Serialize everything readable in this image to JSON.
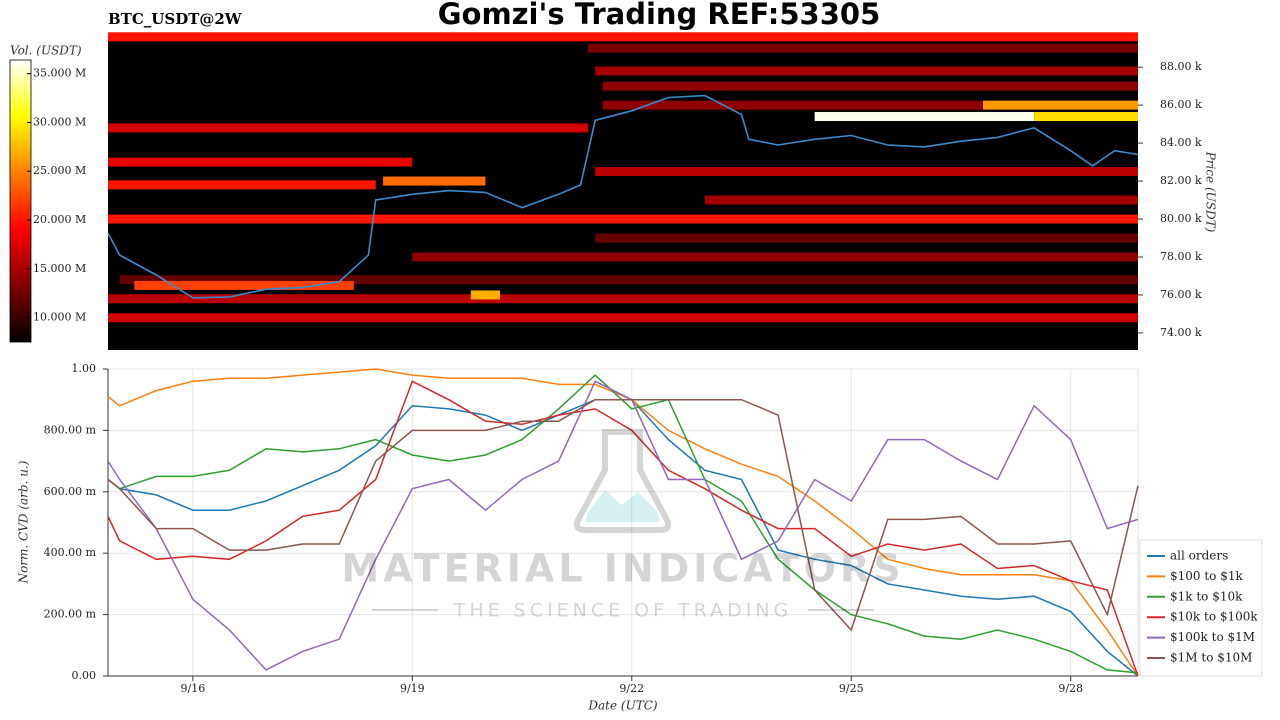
{
  "title": "Gomzi's Trading REF:53305",
  "watermark": {
    "title": "MATERIAL INDICATORS",
    "subtitle": "THE SCIENCE OF TRADING"
  },
  "chart_data": [
    {
      "type": "heatmap",
      "title": "BTC_USDT@2W",
      "ylabel": "Price (USDT)",
      "colorbar_label": "Vol. (USDT)",
      "xlim": [
        14.84,
        28.92
      ],
      "ylim": [
        73100,
        89800
      ],
      "yticks": [
        {
          "value": 74000,
          "label": "74.00 k"
        },
        {
          "value": 76000,
          "label": "76.00 k"
        },
        {
          "value": 78000,
          "label": "78.00 k"
        },
        {
          "value": 80000,
          "label": "80.00 k"
        },
        {
          "value": 82000,
          "label": "82.00 k"
        },
        {
          "value": 84000,
          "label": "84.00 k"
        },
        {
          "value": 86000,
          "label": "86.00 k"
        },
        {
          "value": 88000,
          "label": "88.00 k"
        }
      ],
      "zlim": [
        7500000,
        36400000
      ],
      "zticks": [
        {
          "value": 10000000,
          "label": "10.000 M"
        },
        {
          "value": 15000000,
          "label": "15.000 M"
        },
        {
          "value": 20000000,
          "label": "20.000 M"
        },
        {
          "value": 25000000,
          "label": "25.000 M"
        },
        {
          "value": 30000000,
          "label": "30.000 M"
        },
        {
          "value": 35000000,
          "label": "35.000 M"
        }
      ],
      "cells": [
        {
          "price": 80000,
          "start": 14.84,
          "end": 28.92,
          "volume": 20000000
        },
        {
          "price": 84800,
          "start": 14.84,
          "end": 21.4,
          "volume": 17000000
        },
        {
          "price": 83000,
          "start": 14.84,
          "end": 19.0,
          "volume": 18000000
        },
        {
          "price": 81800,
          "start": 14.84,
          "end": 18.5,
          "volume": 20000000
        },
        {
          "price": 75800,
          "start": 14.84,
          "end": 28.92,
          "volume": 16000000
        },
        {
          "price": 74800,
          "start": 14.84,
          "end": 28.92,
          "volume": 17000000
        },
        {
          "price": 76800,
          "start": 15.0,
          "end": 28.92,
          "volume": 12000000
        },
        {
          "price": 76500,
          "start": 15.2,
          "end": 18.2,
          "volume": 22000000
        },
        {
          "price": 78000,
          "start": 19.0,
          "end": 28.92,
          "volume": 14000000
        },
        {
          "price": 79000,
          "start": 21.5,
          "end": 28.92,
          "volume": 12000000
        },
        {
          "price": 82500,
          "start": 21.5,
          "end": 28.92,
          "volume": 16000000
        },
        {
          "price": 81000,
          "start": 23.0,
          "end": 28.92,
          "volume": 15000000
        },
        {
          "price": 85400,
          "start": 24.5,
          "end": 27.5,
          "volume": 36000000
        },
        {
          "price": 85400,
          "start": 27.5,
          "end": 28.92,
          "volume": 29000000
        },
        {
          "price": 86000,
          "start": 26.8,
          "end": 28.92,
          "volume": 26000000
        },
        {
          "price": 86000,
          "start": 21.6,
          "end": 26.8,
          "volume": 14000000
        },
        {
          "price": 87000,
          "start": 21.6,
          "end": 28.92,
          "volume": 14000000
        },
        {
          "price": 87800,
          "start": 21.5,
          "end": 28.92,
          "volume": 15000000
        },
        {
          "price": 89000,
          "start": 21.4,
          "end": 28.92,
          "volume": 13000000
        },
        {
          "price": 89600,
          "start": 14.84,
          "end": 28.92,
          "volume": 20000000
        },
        {
          "price": 82000,
          "start": 18.6,
          "end": 20.0,
          "volume": 24000000
        },
        {
          "price": 76000,
          "start": 19.8,
          "end": 20.2,
          "volume": 27000000
        }
      ],
      "price_line": {
        "color": "#3a8ccf",
        "x": [
          14.84,
          15,
          15.5,
          16,
          16.5,
          17,
          17.5,
          18,
          18.4,
          18.5,
          19,
          19.5,
          20,
          20.5,
          21,
          21.3,
          21.5,
          22,
          22.5,
          23,
          23.5,
          23.6,
          24,
          24.5,
          25,
          25.5,
          26,
          26.5,
          27,
          27.5,
          28,
          28.3,
          28.6,
          28.92
        ],
        "values": [
          79260,
          78100,
          77050,
          75850,
          75900,
          76300,
          76400,
          76700,
          78100,
          81000,
          81300,
          81500,
          81400,
          80600,
          81300,
          81800,
          85200,
          85700,
          86400,
          86500,
          85500,
          84200,
          83900,
          84200,
          84400,
          83900,
          83800,
          84100,
          84300,
          84800,
          83600,
          82800,
          83600,
          83400
        ]
      }
    },
    {
      "type": "line",
      "xlabel": "Date (UTC)",
      "ylabel": "Norm. CVD (arb. u.)",
      "grid": true,
      "legend": "lower-right",
      "xlim": [
        14.84,
        28.92
      ],
      "ylim": [
        0,
        1
      ],
      "xticks": [
        {
          "value": 16,
          "label": "9/16"
        },
        {
          "value": 19,
          "label": "9/19"
        },
        {
          "value": 22,
          "label": "9/22"
        },
        {
          "value": 25,
          "label": "9/25"
        },
        {
          "value": 28,
          "label": "9/28"
        }
      ],
      "yticks": [
        {
          "value": 0,
          "label": "0.00"
        },
        {
          "value": 0.2,
          "label": "200.00 m"
        },
        {
          "value": 0.4,
          "label": "400.00 m"
        },
        {
          "value": 0.6,
          "label": "600.00 m"
        },
        {
          "value": 0.8,
          "label": "800.00 m"
        },
        {
          "value": 1,
          "label": "1.00"
        }
      ],
      "x": [
        14.84,
        15,
        15.5,
        16,
        16.5,
        17,
        17.5,
        18,
        18.5,
        19,
        19.5,
        20,
        20.5,
        21,
        21.5,
        22,
        22.5,
        23,
        23.5,
        24,
        24.5,
        25,
        25.5,
        26,
        26.5,
        27,
        27.5,
        28,
        28.5,
        28.92
      ],
      "series": [
        {
          "name": "all orders",
          "color": "#1f77b4",
          "values": [
            0.64,
            0.61,
            0.59,
            0.54,
            0.54,
            0.57,
            0.62,
            0.67,
            0.75,
            0.88,
            0.87,
            0.85,
            0.8,
            0.85,
            0.9,
            0.9,
            0.77,
            0.67,
            0.64,
            0.41,
            0.38,
            0.36,
            0.3,
            0.28,
            0.26,
            0.25,
            0.26,
            0.21,
            0.08,
            0.0
          ]
        },
        {
          "name": "$100 to $1k",
          "color": "#ff7f0e",
          "values": [
            0.91,
            0.88,
            0.93,
            0.96,
            0.97,
            0.97,
            0.98,
            0.99,
            1.0,
            0.98,
            0.97,
            0.97,
            0.97,
            0.95,
            0.95,
            0.9,
            0.8,
            0.74,
            0.69,
            0.65,
            0.57,
            0.48,
            0.38,
            0.35,
            0.33,
            0.33,
            0.33,
            0.31,
            0.15,
            0.0
          ]
        },
        {
          "name": "$1k to $10k",
          "color": "#2ca02c",
          "values": [
            0.64,
            0.61,
            0.65,
            0.65,
            0.67,
            0.74,
            0.73,
            0.74,
            0.77,
            0.72,
            0.7,
            0.72,
            0.77,
            0.87,
            0.98,
            0.87,
            0.9,
            0.64,
            0.57,
            0.38,
            0.28,
            0.2,
            0.17,
            0.13,
            0.12,
            0.15,
            0.12,
            0.08,
            0.02,
            0.01
          ]
        },
        {
          "name": "$10k to $100k",
          "color": "#d62728",
          "values": [
            0.52,
            0.44,
            0.38,
            0.39,
            0.38,
            0.44,
            0.52,
            0.54,
            0.64,
            0.96,
            0.9,
            0.83,
            0.82,
            0.85,
            0.87,
            0.8,
            0.67,
            0.61,
            0.54,
            0.48,
            0.48,
            0.39,
            0.43,
            0.41,
            0.43,
            0.35,
            0.36,
            0.31,
            0.28,
            0.0
          ]
        },
        {
          "name": "$100k to $1M",
          "color": "#9467bd",
          "values": [
            0.7,
            0.64,
            0.48,
            0.25,
            0.15,
            0.02,
            0.08,
            0.12,
            0.38,
            0.61,
            0.64,
            0.54,
            0.64,
            0.7,
            0.96,
            0.9,
            0.64,
            0.64,
            0.38,
            0.44,
            0.64,
            0.57,
            0.77,
            0.77,
            0.7,
            0.64,
            0.88,
            0.77,
            0.48,
            0.51
          ]
        },
        {
          "name": "$1M to $10M",
          "color": "#8c564b",
          "values": [
            0.64,
            0.61,
            0.48,
            0.48,
            0.41,
            0.41,
            0.43,
            0.43,
            0.7,
            0.8,
            0.8,
            0.8,
            0.83,
            0.83,
            0.9,
            0.9,
            0.9,
            0.9,
            0.9,
            0.85,
            0.28,
            0.15,
            0.51,
            0.51,
            0.52,
            0.43,
            0.43,
            0.44,
            0.2,
            0.62
          ]
        }
      ]
    }
  ]
}
